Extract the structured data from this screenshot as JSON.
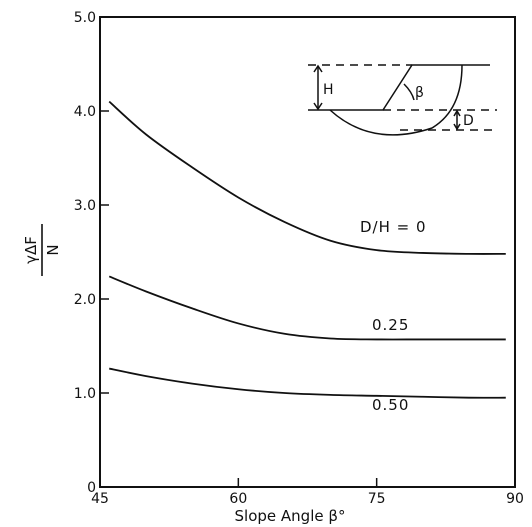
{
  "chart_data": {
    "type": "line",
    "xlabel": "Slope Angle β°",
    "ylabel": "γΔF / N",
    "ylabel_numerator": "γΔF",
    "ylabel_denominator": "N",
    "xlim": [
      45,
      90
    ],
    "ylim": [
      0,
      5
    ],
    "x_ticks": [
      "45",
      "60",
      "75",
      "90"
    ],
    "y_ticks": [
      "0",
      "1.0",
      "2.0",
      "3.0",
      "4.0",
      "5.0"
    ],
    "grid": false,
    "series": [
      {
        "name": "D/H = 0",
        "label": "D/H = 0",
        "x": [
          46,
          50,
          55,
          60,
          65,
          70,
          75,
          80,
          85,
          89
        ],
        "y": [
          4.1,
          3.75,
          3.4,
          3.08,
          2.82,
          2.62,
          2.52,
          2.49,
          2.48,
          2.48
        ]
      },
      {
        "name": "0.25",
        "label": "0.25",
        "x": [
          46,
          50,
          55,
          60,
          65,
          70,
          75,
          80,
          85,
          89
        ],
        "y": [
          2.24,
          2.08,
          1.9,
          1.74,
          1.63,
          1.58,
          1.57,
          1.57,
          1.57,
          1.57
        ]
      },
      {
        "name": "0.50",
        "label": "0.50",
        "x": [
          46,
          50,
          55,
          60,
          65,
          70,
          75,
          80,
          85,
          89
        ],
        "y": [
          1.26,
          1.18,
          1.1,
          1.04,
          1.0,
          0.98,
          0.97,
          0.96,
          0.95,
          0.95
        ]
      }
    ],
    "inset": {
      "labels": {
        "height": "H",
        "angle": "β",
        "depth": "D"
      }
    }
  }
}
